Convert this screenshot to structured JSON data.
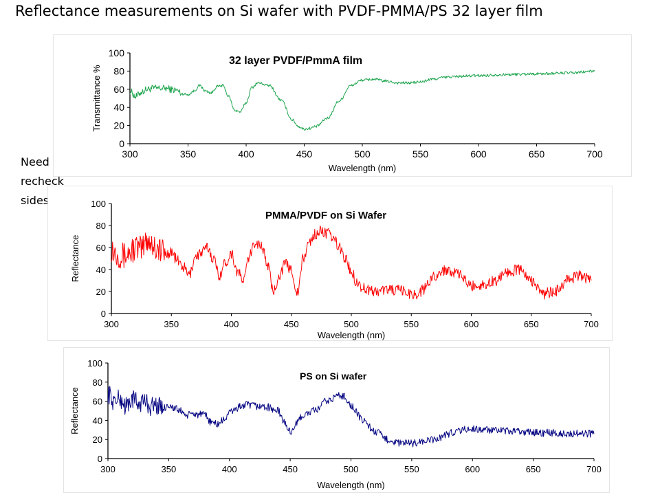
{
  "slide_title": "Reflectance measurements  on Si wafer with PVDF-PMMA/PS 32 layer film",
  "note": "Need to recheck sides",
  "chart_data": [
    {
      "type": "line",
      "title": "32 layer PVDF/PmmA film",
      "xlabel": "Wavelength (nm)",
      "ylabel": "Transmittance %",
      "xlim": [
        300,
        700
      ],
      "ylim": [
        0,
        100
      ],
      "xticks": [
        300,
        350,
        400,
        450,
        500,
        550,
        600,
        650,
        700
      ],
      "yticks": [
        0,
        20,
        40,
        60,
        80,
        100
      ],
      "grid": false,
      "series": [
        {
          "color": "#1aa34a",
          "noise": 1.5,
          "x": [
            300,
            305,
            310,
            315,
            320,
            330,
            340,
            345,
            350,
            355,
            360,
            365,
            370,
            375,
            380,
            385,
            390,
            395,
            400,
            405,
            410,
            420,
            430,
            440,
            445,
            450,
            455,
            460,
            470,
            480,
            490,
            500,
            510,
            520,
            530,
            540,
            550,
            560,
            570,
            580,
            600,
            620,
            650,
            680,
            700
          ],
          "y": [
            58,
            52,
            57,
            60,
            61,
            61,
            59,
            55,
            54,
            58,
            64,
            58,
            56,
            63,
            64,
            52,
            37,
            35,
            45,
            62,
            67,
            64,
            48,
            26,
            19,
            16,
            17,
            19,
            28,
            47,
            64,
            70,
            71,
            69,
            67,
            67,
            68,
            71,
            73,
            74,
            75,
            76,
            77,
            78,
            80
          ]
        }
      ]
    },
    {
      "type": "line",
      "title": "PMMA/PVDF on Si Wafer",
      "xlabel": "Wavelength (nm)",
      "ylabel": "Reflectance",
      "xlim": [
        300,
        700
      ],
      "ylim": [
        0,
        100
      ],
      "xticks": [
        300,
        350,
        400,
        450,
        500,
        550,
        600,
        650,
        700
      ],
      "yticks": [
        0,
        20,
        40,
        60,
        80,
        100
      ],
      "grid": false,
      "series": [
        {
          "color": "#ff0000",
          "noise": 5,
          "x": [
            300,
            305,
            310,
            315,
            320,
            325,
            330,
            335,
            340,
            345,
            350,
            355,
            360,
            365,
            370,
            375,
            380,
            385,
            390,
            395,
            400,
            405,
            410,
            415,
            420,
            425,
            430,
            435,
            440,
            445,
            450,
            455,
            460,
            465,
            470,
            475,
            480,
            485,
            490,
            495,
            500,
            505,
            510,
            520,
            530,
            540,
            550,
            555,
            560,
            570,
            580,
            590,
            600,
            610,
            620,
            630,
            640,
            650,
            660,
            670,
            680,
            690,
            700
          ],
          "y": [
            60,
            55,
            52,
            55,
            60,
            58,
            68,
            62,
            58,
            54,
            56,
            48,
            42,
            35,
            52,
            55,
            60,
            50,
            35,
            46,
            55,
            38,
            30,
            52,
            65,
            62,
            45,
            20,
            35,
            45,
            40,
            18,
            50,
            65,
            72,
            75,
            73,
            68,
            60,
            50,
            38,
            28,
            23,
            20,
            22,
            21,
            18,
            17,
            22,
            35,
            40,
            35,
            25,
            26,
            30,
            38,
            40,
            30,
            18,
            20,
            30,
            35,
            30
          ]
        }
      ]
    },
    {
      "type": "line",
      "title": "PS on Si wafer",
      "xlabel": "Wavelength (nm)",
      "ylabel": "Reflectance",
      "xlim": [
        300,
        700
      ],
      "ylim": [
        0,
        100
      ],
      "xticks": [
        300,
        350,
        400,
        450,
        500,
        550,
        600,
        650,
        700
      ],
      "yticks": [
        0,
        20,
        40,
        60,
        80,
        100
      ],
      "grid": false,
      "series": [
        {
          "color": "#000080",
          "noise": 4,
          "x": [
            300,
            305,
            310,
            315,
            320,
            325,
            330,
            335,
            340,
            345,
            350,
            355,
            360,
            365,
            370,
            375,
            380,
            385,
            390,
            395,
            400,
            405,
            410,
            415,
            420,
            430,
            440,
            445,
            450,
            455,
            460,
            470,
            480,
            490,
            495,
            500,
            510,
            520,
            530,
            540,
            550,
            560,
            570,
            580,
            590,
            600,
            610,
            620,
            640,
            660,
            680,
            700
          ],
          "y": [
            68,
            60,
            62,
            55,
            62,
            58,
            60,
            55,
            56,
            52,
            56,
            52,
            50,
            45,
            47,
            46,
            45,
            38,
            36,
            40,
            48,
            52,
            55,
            56,
            55,
            54,
            50,
            38,
            28,
            36,
            45,
            50,
            60,
            66,
            65,
            55,
            40,
            28,
            20,
            16,
            16,
            18,
            20,
            26,
            30,
            31,
            30,
            29,
            28,
            27,
            26,
            26
          ]
        }
      ]
    }
  ]
}
